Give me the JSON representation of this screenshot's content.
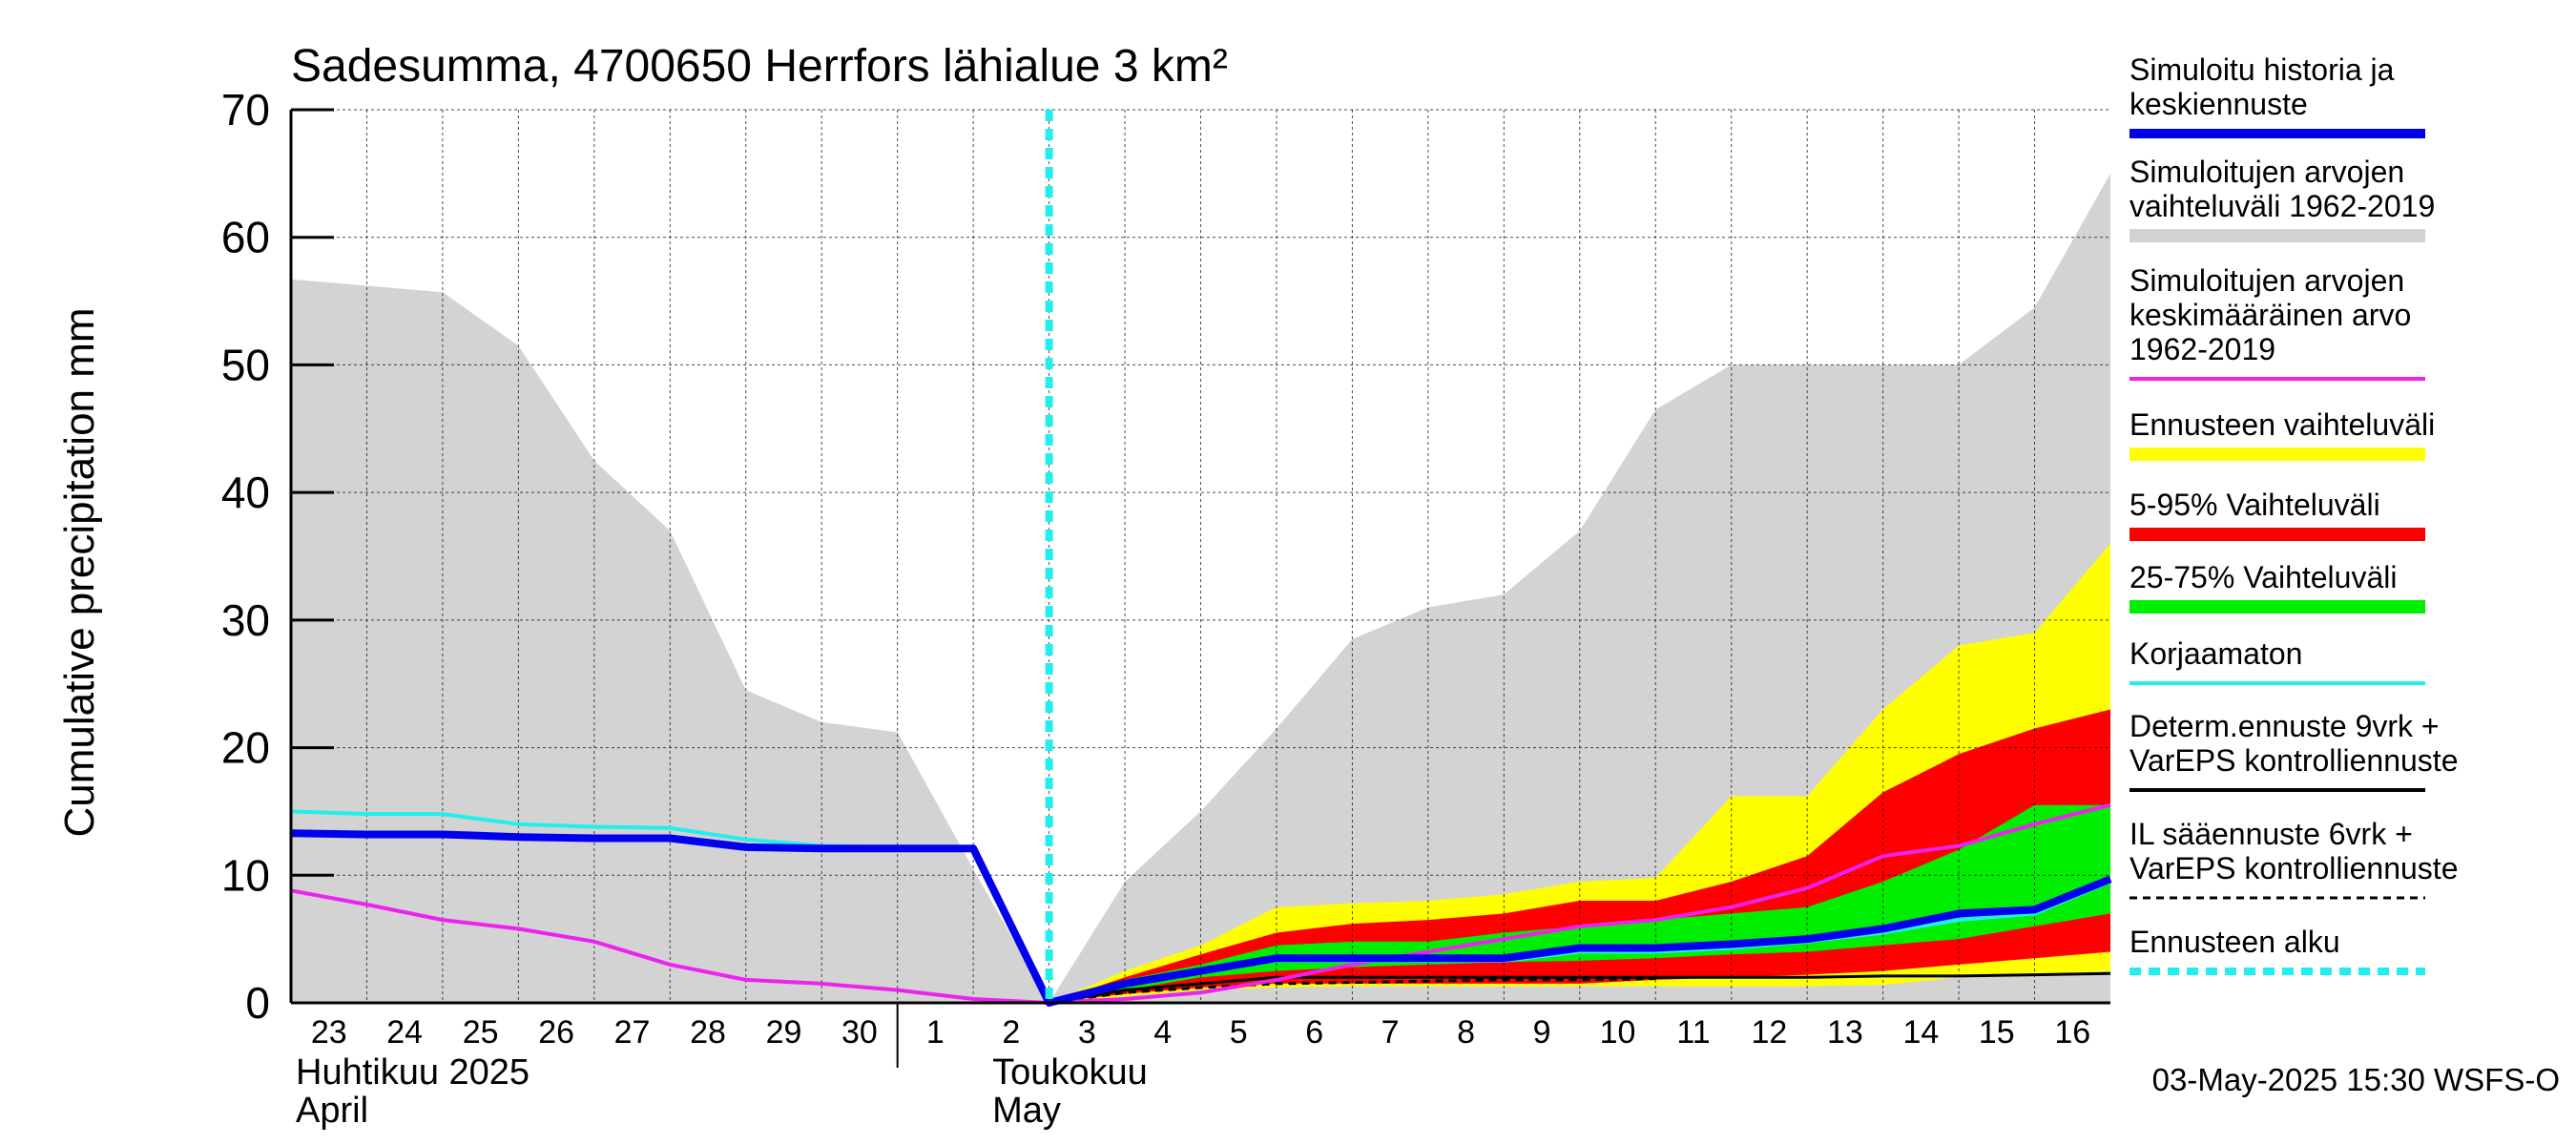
{
  "chart_data": {
    "type": "area",
    "title": "Sadesumma, 4700650 Herrfors lähialue 3 km²",
    "ylabel": "Cumulative precipitation   mm",
    "xlabel": "",
    "ylim": [
      0,
      70
    ],
    "y_ticks": [
      0,
      10,
      20,
      30,
      40,
      50,
      60,
      70
    ],
    "grid": true,
    "legend_position": "right",
    "x_days": [
      "23",
      "24",
      "25",
      "26",
      "27",
      "28",
      "29",
      "30",
      "1",
      "2",
      "3",
      "4",
      "5",
      "6",
      "7",
      "8",
      "9",
      "10",
      "11",
      "12",
      "13",
      "14",
      "15",
      "16"
    ],
    "x_index": [
      0,
      1,
      2,
      3,
      4,
      5,
      6,
      7,
      8,
      9,
      10,
      11,
      12,
      13,
      14,
      15,
      16,
      17,
      18,
      19,
      20,
      21,
      22,
      23,
      24
    ],
    "month_labels": [
      {
        "line1": "Huhtikuu  2025",
        "line2": "April"
      },
      {
        "line1": "Toukokuu",
        "line2": "May"
      }
    ],
    "forecast_start_index": 10,
    "footer": "03-May-2025 15:30 WSFS-O",
    "legend": [
      {
        "label": "Simuloitu historia ja\nkeskiennuste",
        "color": "#0000ee",
        "style": "thick"
      },
      {
        "label": "Simuloitujen arvojen\nvaihteluväli 1962-2019",
        "color": "#d3d3d3",
        "style": "band"
      },
      {
        "label": "Simuloitujen arvojen\nkeskimääräinen arvo\n   1962-2019",
        "color": "#ee22ee",
        "style": "line"
      },
      {
        "label": "Ennusteen vaihteluväli",
        "color": "#ffff00",
        "style": "band"
      },
      {
        "label": "5-95% Vaihteluväli",
        "color": "#ff0000",
        "style": "band"
      },
      {
        "label": "25-75% Vaihteluväli",
        "color": "#00ee00",
        "style": "band"
      },
      {
        "label": "Korjaamaton",
        "color": "#22eeee",
        "style": "line"
      },
      {
        "label": "Determ.ennuste 9vrk +\nVarEPS kontrolliennuste",
        "color": "#000000",
        "style": "line"
      },
      {
        "label": "IL sääennuste 6vrk  +\n  VarEPS kontrolliennuste",
        "color": "#000000",
        "style": "dashed"
      },
      {
        "label": "Ennusteen alku",
        "color": "#22eeee",
        "style": "dotted"
      }
    ],
    "series": {
      "hist_range_upper": [
        56.7,
        56.2,
        55.7,
        51.5,
        42.5,
        37.0,
        24.5,
        22.0,
        21.2,
        10.5,
        0,
        9.5,
        15.0,
        21.5,
        28.5,
        31.0,
        32.0,
        37.0,
        46.5,
        50.0,
        50.0,
        50.0,
        50.0,
        54.5,
        65.0
      ],
      "hist_range_lower": [
        0,
        0,
        0,
        0,
        0,
        0,
        0,
        0,
        0,
        0,
        0,
        0,
        0,
        0,
        0,
        0,
        0,
        0,
        0,
        0,
        0,
        0,
        0,
        0,
        0
      ],
      "hist_mean": [
        8.8,
        7.7,
        6.5,
        5.8,
        4.8,
        3.0,
        1.8,
        1.5,
        1.0,
        0.3,
        0,
        0.3,
        0.8,
        1.8,
        3.0,
        4.0,
        5.0,
        6.0,
        6.5,
        7.5,
        9.0,
        11.5,
        12.3,
        14.0,
        15.5
      ],
      "ens_max": [
        null,
        null,
        null,
        null,
        null,
        null,
        null,
        null,
        null,
        null,
        0,
        2.5,
        4.5,
        7.5,
        7.8,
        8.0,
        8.5,
        9.5,
        9.8,
        16.2,
        16.2,
        23.0,
        28.0,
        29.0,
        36.0
      ],
      "ens_min": [
        null,
        null,
        null,
        null,
        null,
        null,
        null,
        null,
        null,
        null,
        0,
        0.5,
        1.0,
        1.2,
        1.3,
        1.3,
        1.3,
        1.3,
        1.3,
        1.3,
        1.3,
        1.4,
        2.0,
        2.2,
        2.5
      ],
      "p95": [
        null,
        null,
        null,
        null,
        null,
        null,
        null,
        null,
        null,
        null,
        0,
        2.0,
        3.8,
        5.5,
        6.2,
        6.5,
        7.0,
        8.0,
        8.0,
        9.5,
        11.5,
        16.5,
        19.5,
        21.5,
        23.0
      ],
      "p05": [
        null,
        null,
        null,
        null,
        null,
        null,
        null,
        null,
        null,
        null,
        0,
        0.7,
        1.2,
        1.5,
        1.5,
        1.5,
        1.5,
        1.5,
        1.8,
        2.0,
        2.2,
        2.5,
        3.0,
        3.5,
        4.0
      ],
      "p75": [
        null,
        null,
        null,
        null,
        null,
        null,
        null,
        null,
        null,
        null,
        0,
        1.8,
        3.0,
        4.5,
        4.8,
        4.8,
        5.5,
        6.0,
        6.5,
        7.0,
        7.5,
        9.5,
        12.0,
        15.5,
        15.5
      ],
      "p25": [
        null,
        null,
        null,
        null,
        null,
        null,
        null,
        null,
        null,
        null,
        0,
        1.0,
        2.0,
        2.5,
        2.8,
        3.0,
        3.2,
        3.3,
        3.5,
        3.8,
        4.0,
        4.5,
        5.0,
        6.0,
        7.0
      ],
      "mean_forecast": [
        13.3,
        13.2,
        13.2,
        13.0,
        12.9,
        12.9,
        12.2,
        12.1,
        12.1,
        12.1,
        0,
        1.5,
        2.5,
        3.5,
        3.5,
        3.5,
        3.5,
        4.3,
        4.3,
        4.6,
        5.0,
        5.8,
        7.0,
        7.3,
        9.7
      ],
      "uncorrected": [
        15.0,
        14.8,
        14.8,
        14.0,
        13.8,
        13.7,
        12.8,
        12.3,
        12.2,
        12.2,
        0,
        1.5,
        2.5,
        3.3,
        3.3,
        3.3,
        3.3,
        4.0,
        4.0,
        4.3,
        4.8,
        5.5,
        6.5,
        7.0,
        9.5
      ],
      "determ": [
        null,
        null,
        null,
        null,
        null,
        null,
        null,
        null,
        null,
        null,
        0,
        1.0,
        1.5,
        2.0,
        2.0,
        2.0,
        2.0,
        2.0,
        2.0,
        2.0,
        2.0,
        2.1,
        2.1,
        2.2,
        2.3
      ],
      "il_forecast": [
        null,
        null,
        null,
        null,
        null,
        null,
        null,
        null,
        null,
        null,
        0,
        0.8,
        1.2,
        1.5,
        1.6,
        1.7,
        1.8,
        1.8,
        1.9,
        null,
        null,
        null,
        null,
        null,
        null
      ]
    }
  }
}
